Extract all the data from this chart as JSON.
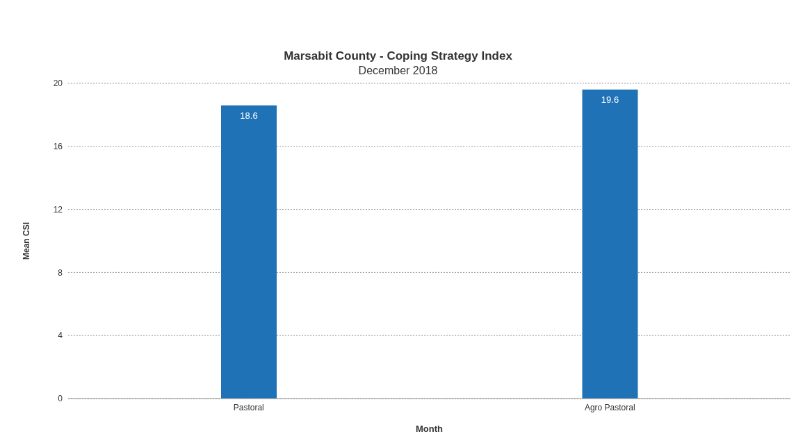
{
  "chart_data": {
    "type": "bar",
    "title": "Marsabit County - Coping Strategy Index",
    "subtitle": "December 2018",
    "xlabel": "Month",
    "ylabel": "Mean CSI",
    "categories": [
      "Pastoral",
      "Agro Pastoral"
    ],
    "values": [
      18.6,
      19.6
    ],
    "color": "#1f72b6",
    "ylim": [
      0,
      20
    ],
    "yticks": [
      0,
      4,
      8,
      12,
      16,
      20
    ],
    "grid": "y",
    "data_labels": true
  }
}
